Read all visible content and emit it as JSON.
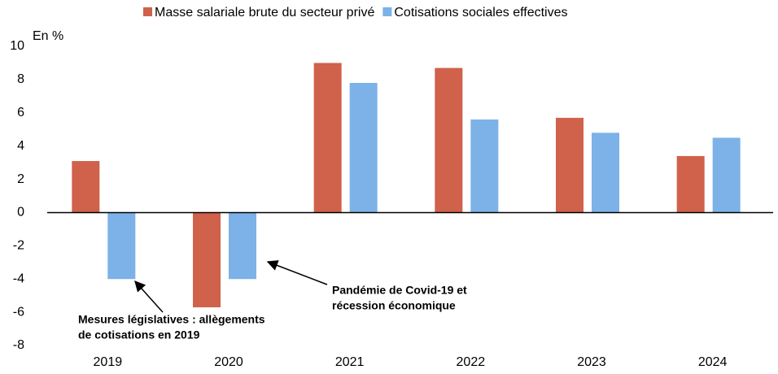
{
  "chart_data": {
    "type": "bar",
    "y_unit_label": "En %",
    "categories": [
      "2019",
      "2020",
      "2021",
      "2022",
      "2023",
      "2024"
    ],
    "series": [
      {
        "name": "Masse salariale brute du secteur privé",
        "color": "#d0614a",
        "values": [
          3.1,
          -5.7,
          9.0,
          8.7,
          5.7,
          3.4
        ]
      },
      {
        "name": "Cotisations sociales effectives",
        "color": "#7cb2e8",
        "values": [
          -4.0,
          -4.0,
          7.8,
          5.6,
          4.8,
          4.5
        ]
      }
    ],
    "ylim": [
      -8,
      10
    ],
    "yticks": [
      -8,
      -6,
      -4,
      -2,
      0,
      2,
      4,
      6,
      8,
      10
    ],
    "legend": "top",
    "annotations": [
      {
        "lines": [
          "Mesures législatives : allègements",
          "de cotisations en 2019"
        ]
      },
      {
        "lines": [
          "Pandémie de Covid-19 et",
          "récession économique"
        ]
      }
    ]
  }
}
